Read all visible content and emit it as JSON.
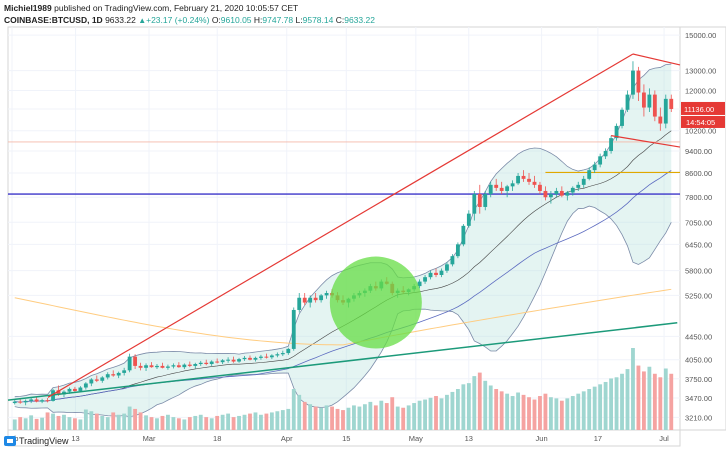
{
  "header": {
    "author": "Michiel1989",
    "published_text": "published on TradingView.com, February 21, 2020 10:05:57 CET",
    "symbol": "COINBASE:BTCUSD, 1D",
    "price": "9633.22",
    "change_arrow": "▲",
    "change": "+23.17 (+0.24%)",
    "o_label": "O:",
    "o_value": "9610.05",
    "h_label": "H:",
    "h_value": "9747.78",
    "l_label": "L:",
    "l_value": "9578.14",
    "c_label": "C:",
    "c_value": "9633.22"
  },
  "footer": {
    "brand": "TradingView"
  },
  "colors": {
    "up": "#26a69a",
    "down": "#ef5350",
    "band_fill": "#b2dfdb",
    "band_line": "#7b8ba8",
    "purple_line": "#3b35c9",
    "orange_line": "#ffcc80",
    "gold_line": "#e0a800",
    "red_trend": "#e53935",
    "teal_trend": "#1c9a7a",
    "circle": "#66dd44",
    "price_tag": "#e53935"
  },
  "chart_data": {
    "type": "candlestick",
    "scale": "log",
    "ylim": [
      3050,
      15500
    ],
    "y_ticks": [
      "15000.00",
      "13000.00",
      "12000.00",
      "11136.00",
      "10200.00",
      "9400.00",
      "8600.00",
      "7800.00",
      "7050.00",
      "6450.00",
      "5800.00",
      "5250.00",
      "4450.00",
      "4050.00",
      "3750.00",
      "3470.00",
      "3210.00"
    ],
    "price_label": "11136.00",
    "countdown_label": "14:54:05",
    "x_ticks": [
      "Feb",
      "13",
      "Mar",
      "18",
      "Apr",
      "15",
      "May",
      "13",
      "Jun",
      "17",
      "Jul"
    ],
    "candles_ohlc": [
      [
        3400,
        3440,
        3380,
        3420
      ],
      [
        3420,
        3460,
        3390,
        3410
      ],
      [
        3410,
        3450,
        3370,
        3430
      ],
      [
        3430,
        3470,
        3400,
        3450
      ],
      [
        3450,
        3480,
        3410,
        3420
      ],
      [
        3420,
        3460,
        3400,
        3440
      ],
      [
        3440,
        3470,
        3410,
        3430
      ],
      [
        3430,
        3600,
        3420,
        3580
      ],
      [
        3580,
        3650,
        3500,
        3520
      ],
      [
        3520,
        3580,
        3480,
        3560
      ],
      [
        3560,
        3620,
        3530,
        3600
      ],
      [
        3600,
        3630,
        3550,
        3570
      ],
      [
        3570,
        3640,
        3550,
        3620
      ],
      [
        3620,
        3700,
        3590,
        3680
      ],
      [
        3680,
        3760,
        3640,
        3740
      ],
      [
        3740,
        3800,
        3700,
        3720
      ],
      [
        3720,
        3790,
        3690,
        3770
      ],
      [
        3770,
        3850,
        3740,
        3820
      ],
      [
        3820,
        3880,
        3780,
        3800
      ],
      [
        3800,
        3860,
        3760,
        3840
      ],
      [
        3840,
        3920,
        3800,
        3880
      ],
      [
        3880,
        4150,
        3850,
        4100
      ],
      [
        4100,
        4140,
        3900,
        3950
      ],
      [
        3950,
        4000,
        3880,
        3920
      ],
      [
        3920,
        3990,
        3870,
        3960
      ],
      [
        3960,
        4010,
        3920,
        3930
      ],
      [
        3930,
        3980,
        3900,
        3950
      ],
      [
        3950,
        4000,
        3910,
        3920
      ],
      [
        3920,
        3970,
        3890,
        3940
      ],
      [
        3940,
        3990,
        3910,
        3960
      ],
      [
        3960,
        4010,
        3920,
        3930
      ],
      [
        3930,
        3990,
        3900,
        3970
      ],
      [
        3970,
        4020,
        3930,
        3950
      ],
      [
        3950,
        4000,
        3910,
        3980
      ],
      [
        3980,
        4030,
        3950,
        4000
      ],
      [
        4000,
        4050,
        3960,
        3980
      ],
      [
        3980,
        4040,
        3950,
        4020
      ],
      [
        4020,
        4070,
        3990,
        4010
      ],
      [
        4010,
        4060,
        3980,
        4040
      ],
      [
        4040,
        4090,
        4000,
        4050
      ],
      [
        4050,
        4100,
        4000,
        4020
      ],
      [
        4020,
        4080,
        4000,
        4060
      ],
      [
        4060,
        4110,
        4030,
        4080
      ],
      [
        4080,
        4120,
        4040,
        4050
      ],
      [
        4050,
        4100,
        4020,
        4080
      ],
      [
        4080,
        4130,
        4050,
        4100
      ],
      [
        4100,
        4150,
        4070,
        4090
      ],
      [
        4090,
        4140,
        4060,
        4120
      ],
      [
        4120,
        4170,
        4090,
        4140
      ],
      [
        4140,
        4200,
        4110,
        4160
      ],
      [
        4160,
        4250,
        4130,
        4230
      ],
      [
        4230,
        5000,
        4200,
        4950
      ],
      [
        4950,
        5300,
        4900,
        5200
      ],
      [
        5200,
        5300,
        5050,
        5100
      ],
      [
        5100,
        5250,
        5000,
        5200
      ],
      [
        5200,
        5300,
        5100,
        5150
      ],
      [
        5150,
        5280,
        5100,
        5250
      ],
      [
        5250,
        5350,
        5180,
        5300
      ],
      [
        5300,
        5380,
        5200,
        5250
      ],
      [
        5250,
        5320,
        5100,
        5150
      ],
      [
        5150,
        5250,
        5050,
        5100
      ],
      [
        5100,
        5200,
        5000,
        5180
      ],
      [
        5180,
        5300,
        5120,
        5250
      ],
      [
        5250,
        5350,
        5200,
        5300
      ],
      [
        5300,
        5400,
        5220,
        5350
      ],
      [
        5350,
        5500,
        5300,
        5450
      ],
      [
        5450,
        5550,
        5350,
        5400
      ],
      [
        5400,
        5600,
        5350,
        5550
      ],
      [
        5550,
        5650,
        5480,
        5500
      ],
      [
        5500,
        5550,
        5250,
        5300
      ],
      [
        5300,
        5400,
        5200,
        5350
      ],
      [
        5350,
        5450,
        5280,
        5320
      ],
      [
        5320,
        5400,
        5250,
        5380
      ],
      [
        5380,
        5500,
        5330,
        5450
      ],
      [
        5450,
        5600,
        5400,
        5550
      ],
      [
        5550,
        5700,
        5500,
        5650
      ],
      [
        5650,
        5800,
        5600,
        5750
      ],
      [
        5750,
        5850,
        5650,
        5700
      ],
      [
        5700,
        5850,
        5650,
        5800
      ],
      [
        5800,
        6000,
        5750,
        5950
      ],
      [
        5950,
        6200,
        5900,
        6150
      ],
      [
        6150,
        6500,
        6100,
        6450
      ],
      [
        6450,
        7000,
        6400,
        6950
      ],
      [
        6950,
        7400,
        6900,
        7300
      ],
      [
        7300,
        8000,
        7100,
        7900
      ],
      [
        7900,
        8200,
        7300,
        7500
      ],
      [
        7500,
        8000,
        7400,
        7900
      ],
      [
        7900,
        8300,
        7800,
        8200
      ],
      [
        8200,
        8400,
        8000,
        8100
      ],
      [
        8100,
        8300,
        7900,
        8000
      ],
      [
        8000,
        8200,
        7800,
        8150
      ],
      [
        8150,
        8350,
        8000,
        8250
      ],
      [
        8250,
        8600,
        8200,
        8500
      ],
      [
        8500,
        8700,
        8300,
        8400
      ],
      [
        8400,
        8600,
        8200,
        8300
      ],
      [
        8300,
        8500,
        8100,
        8200
      ],
      [
        8200,
        8300,
        7900,
        8000
      ],
      [
        8000,
        8150,
        7700,
        7800
      ],
      [
        7800,
        8000,
        7600,
        7900
      ],
      [
        7900,
        8100,
        7800,
        8000
      ],
      [
        8000,
        8150,
        7800,
        7850
      ],
      [
        7850,
        8000,
        7700,
        7950
      ],
      [
        7950,
        8150,
        7850,
        8100
      ],
      [
        8100,
        8300,
        8000,
        8200
      ],
      [
        8200,
        8500,
        8100,
        8400
      ],
      [
        8400,
        8800,
        8350,
        8700
      ],
      [
        8700,
        9000,
        8600,
        8900
      ],
      [
        8900,
        9300,
        8800,
        9200
      ],
      [
        9200,
        9500,
        9100,
        9400
      ],
      [
        9400,
        10000,
        9300,
        9900
      ],
      [
        9900,
        10500,
        9800,
        10400
      ],
      [
        10400,
        11200,
        10300,
        11100
      ],
      [
        11100,
        12000,
        11000,
        11800
      ],
      [
        11800,
        13500,
        11600,
        13000
      ],
      [
        13000,
        13200,
        11500,
        11900
      ],
      [
        11900,
        12300,
        10800,
        11200
      ],
      [
        11200,
        12100,
        11000,
        11800
      ],
      [
        11800,
        12000,
        10600,
        10800
      ],
      [
        10800,
        11200,
        10200,
        10500
      ],
      [
        10500,
        11800,
        10300,
        11600
      ],
      [
        11600,
        11800,
        11000,
        11136
      ]
    ],
    "volumes": [
      18,
      22,
      20,
      25,
      19,
      21,
      30,
      28,
      24,
      26,
      22,
      20,
      18,
      35,
      32,
      28,
      24,
      22,
      30,
      26,
      28,
      40,
      36,
      30,
      25,
      22,
      20,
      24,
      26,
      22,
      20,
      18,
      22,
      24,
      26,
      22,
      20,
      24,
      26,
      28,
      22,
      24,
      26,
      28,
      30,
      26,
      28,
      30,
      32,
      34,
      36,
      70,
      60,
      48,
      44,
      40,
      38,
      42,
      40,
      36,
      34,
      38,
      42,
      40,
      44,
      48,
      42,
      50,
      46,
      56,
      40,
      38,
      42,
      46,
      50,
      52,
      55,
      58,
      54,
      60,
      65,
      70,
      78,
      80,
      92,
      98,
      84,
      76,
      70,
      66,
      62,
      58,
      64,
      60,
      56,
      52,
      58,
      62,
      56,
      54,
      50,
      54,
      58,
      62,
      66,
      70,
      74,
      78,
      82,
      88,
      90,
      96,
      104,
      140,
      110,
      100,
      108,
      96,
      90,
      105,
      96
    ],
    "tech_lines": [
      "bollinger bands",
      "moving averages",
      "trendlines",
      "circle highlight"
    ]
  }
}
